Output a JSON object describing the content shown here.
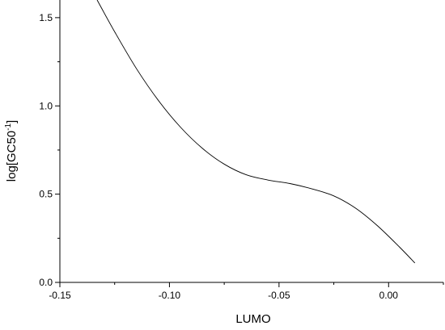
{
  "chart_data": {
    "type": "line",
    "xlabel": "LUMO",
    "ylabel_main": "log[GC50",
    "ylabel_sup": "-1",
    "ylabel_close": "]",
    "xlim": [
      -0.15,
      0.025
    ],
    "ylim": [
      0.0,
      1.6
    ],
    "x_ticks": [
      -0.15,
      -0.1,
      -0.05,
      0.0
    ],
    "x_tick_labels": [
      "-0.15",
      "-0.10",
      "-0.05",
      "0.00"
    ],
    "y_ticks": [
      0.0,
      0.5,
      1.0,
      1.5
    ],
    "y_tick_labels": [
      "0.0",
      "0.5",
      "1.0",
      "1.5"
    ],
    "series": [
      {
        "x": [
          -0.133,
          -0.125,
          -0.115,
          -0.105,
          -0.095,
          -0.085,
          -0.075,
          -0.065,
          -0.055,
          -0.045,
          -0.035,
          -0.025,
          -0.015,
          -0.005,
          0.005,
          0.012
        ],
        "y": [
          1.6,
          1.42,
          1.21,
          1.03,
          0.88,
          0.76,
          0.67,
          0.61,
          0.58,
          0.56,
          0.53,
          0.49,
          0.42,
          0.32,
          0.2,
          0.11
        ]
      }
    ]
  }
}
